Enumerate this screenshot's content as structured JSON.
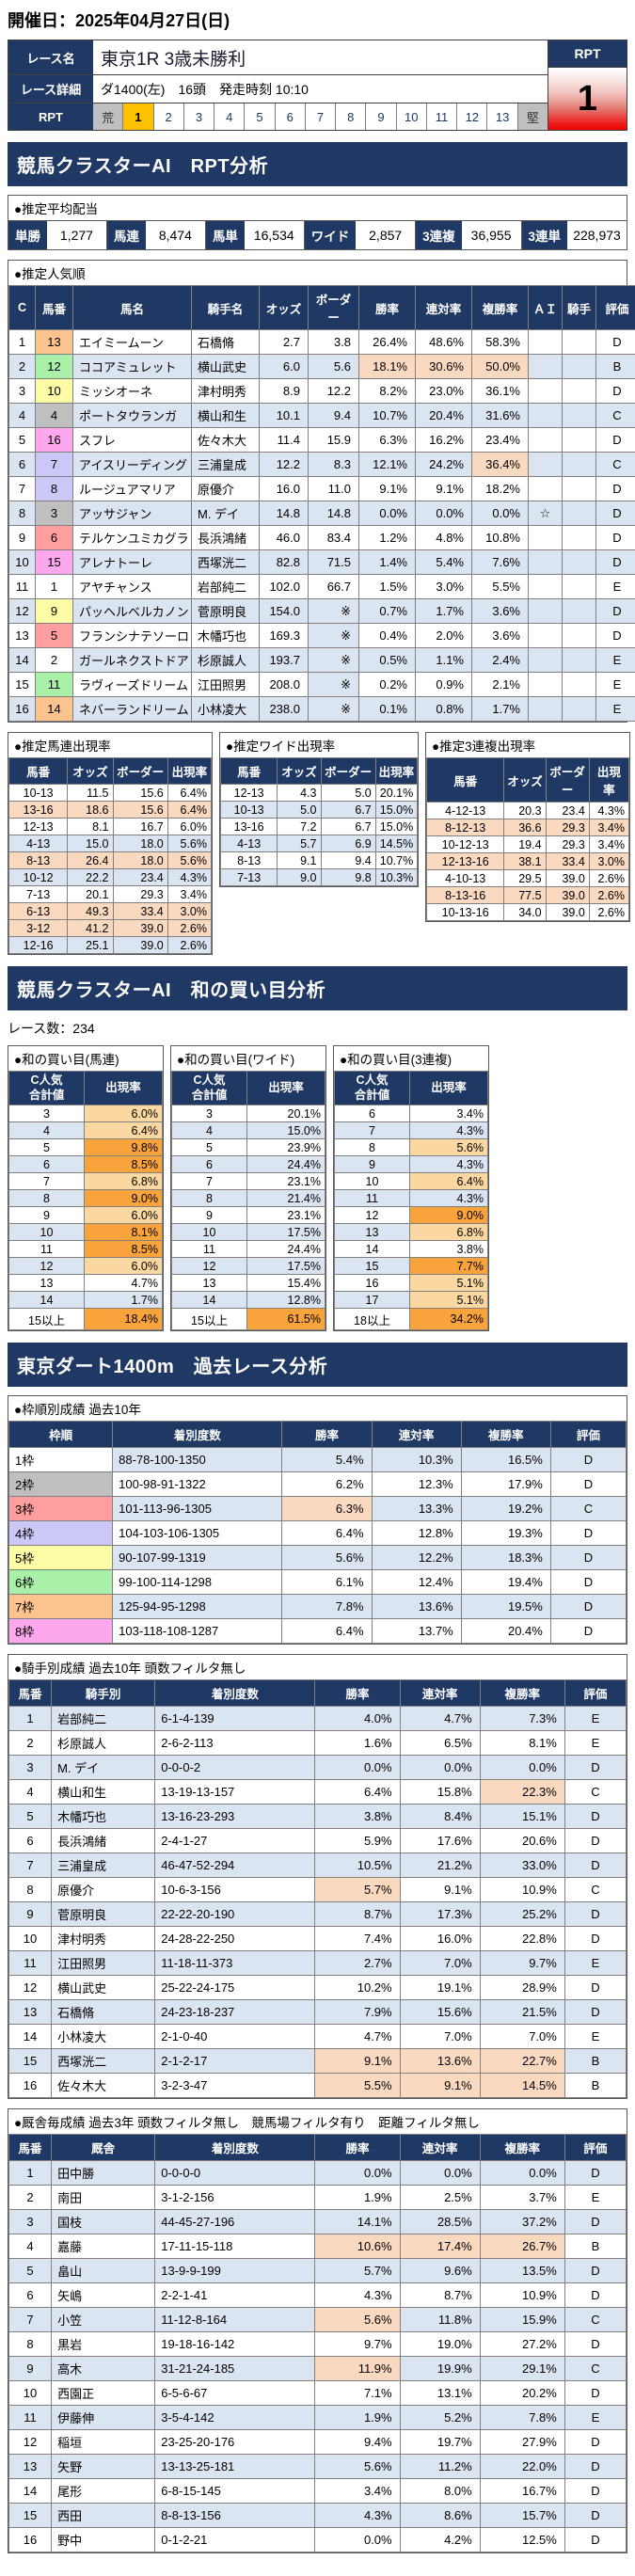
{
  "page": {
    "date": "開催日：2025年04月27日(日)"
  },
  "race": {
    "name_label": "レース名",
    "name": "東京1R 3歳未勝利",
    "detail_label": "レース詳細",
    "detail": "ダ1400(左)　16頭　発走時刻 10:10",
    "rpt_label": "RPT",
    "rpt_scale": [
      "荒",
      "1",
      "2",
      "3",
      "4",
      "5",
      "6",
      "7",
      "8",
      "9",
      "10",
      "11",
      "12",
      "13",
      "堅"
    ],
    "rpt_selected": "1",
    "badge_label": "RPT",
    "badge_value": "1"
  },
  "section_titles": {
    "rpt": "競馬クラスターAI　RPT分析",
    "wa": "競馬クラスターAI　和の買い目分析",
    "past": "東京ダート1400m　過去レース分析"
  },
  "payout": {
    "title": "●推定平均配当",
    "items": [
      [
        "単勝",
        "1,277"
      ],
      [
        "馬連",
        "8,474"
      ],
      [
        "馬単",
        "16,534"
      ],
      [
        "ワイド",
        "2,857"
      ],
      [
        "3連複",
        "36,955"
      ],
      [
        "3連単",
        "228,973"
      ]
    ]
  },
  "popularity": {
    "title": "●推定人気順",
    "headers": [
      "C",
      "馬番",
      "馬名",
      "騎手名",
      "オッズ",
      "ボーダー",
      "勝率",
      "連対率",
      "複勝率",
      "ＡＩ",
      "騎手",
      "評価"
    ],
    "rows": [
      {
        "c": 1,
        "num": 13,
        "name": "エイミームーン",
        "jockey": "石橋脩",
        "odds": "2.7",
        "border": "3.8",
        "win": "26.4%",
        "ren": "48.6%",
        "fuku": "58.3%",
        "ai": "",
        "rider": "",
        "eval": "D",
        "hl": []
      },
      {
        "c": 2,
        "num": 12,
        "name": "ココアミュレット",
        "jockey": "横山武史",
        "odds": "6.0",
        "border": "5.6",
        "win": "18.1%",
        "ren": "30.6%",
        "fuku": "50.0%",
        "ai": "",
        "rider": "",
        "eval": "B",
        "hl": [
          "win",
          "ren",
          "fuku"
        ]
      },
      {
        "c": 3,
        "num": 10,
        "name": "ミッシオーネ",
        "jockey": "津村明秀",
        "odds": "8.9",
        "border": "12.2",
        "win": "8.2%",
        "ren": "23.0%",
        "fuku": "36.1%",
        "ai": "",
        "rider": "",
        "eval": "D",
        "hl": []
      },
      {
        "c": 4,
        "num": 4,
        "name": "ポートタウランガ",
        "jockey": "横山和生",
        "odds": "10.1",
        "border": "9.4",
        "win": "10.7%",
        "ren": "20.4%",
        "fuku": "31.6%",
        "ai": "",
        "rider": "",
        "eval": "C",
        "hl": []
      },
      {
        "c": 5,
        "num": 16,
        "name": "スフレ",
        "jockey": "佐々木大",
        "odds": "11.4",
        "border": "15.9",
        "win": "6.3%",
        "ren": "16.2%",
        "fuku": "23.4%",
        "ai": "",
        "rider": "",
        "eval": "D",
        "hl": []
      },
      {
        "c": 6,
        "num": 7,
        "name": "アイスリーディング",
        "jockey": "三浦皇成",
        "odds": "12.2",
        "border": "8.3",
        "win": "12.1%",
        "ren": "24.2%",
        "fuku": "36.4%",
        "ai": "",
        "rider": "",
        "eval": "C",
        "hl": [
          "fuku"
        ]
      },
      {
        "c": 7,
        "num": 8,
        "name": "ルージュアマリア",
        "jockey": "原優介",
        "odds": "16.0",
        "border": "11.0",
        "win": "9.1%",
        "ren": "9.1%",
        "fuku": "18.2%",
        "ai": "",
        "rider": "",
        "eval": "D",
        "hl": []
      },
      {
        "c": 8,
        "num": 3,
        "name": "アッサジャン",
        "jockey": "M. デイ",
        "odds": "14.8",
        "border": "14.8",
        "win": "0.0%",
        "ren": "0.0%",
        "fuku": "0.0%",
        "ai": "☆",
        "rider": "",
        "eval": "D",
        "hl": []
      },
      {
        "c": 9,
        "num": 6,
        "name": "テルケンユミカグラ",
        "jockey": "長浜鴻緒",
        "odds": "46.0",
        "border": "83.4",
        "win": "1.2%",
        "ren": "4.8%",
        "fuku": "10.8%",
        "ai": "",
        "rider": "",
        "eval": "D",
        "hl": []
      },
      {
        "c": 10,
        "num": 15,
        "name": "アレナトーレ",
        "jockey": "西塚洸二",
        "odds": "82.8",
        "border": "71.5",
        "win": "1.4%",
        "ren": "5.4%",
        "fuku": "7.6%",
        "ai": "",
        "rider": "",
        "eval": "D",
        "hl": []
      },
      {
        "c": 11,
        "num": 1,
        "name": "アヤチャンス",
        "jockey": "岩部純二",
        "odds": "102.0",
        "border": "66.7",
        "win": "1.5%",
        "ren": "3.0%",
        "fuku": "5.5%",
        "ai": "",
        "rider": "",
        "eval": "E",
        "hl": []
      },
      {
        "c": 12,
        "num": 9,
        "name": "パッヘルベルカノン",
        "jockey": "菅原明良",
        "odds": "154.0",
        "border": "※",
        "win": "0.7%",
        "ren": "1.7%",
        "fuku": "3.6%",
        "ai": "",
        "rider": "",
        "eval": "D",
        "hl": []
      },
      {
        "c": 13,
        "num": 5,
        "name": "フランシナテソーロ",
        "jockey": "木幡巧也",
        "odds": "169.3",
        "border": "※",
        "win": "0.4%",
        "ren": "2.0%",
        "fuku": "3.6%",
        "ai": "",
        "rider": "",
        "eval": "D",
        "hl": []
      },
      {
        "c": 14,
        "num": 2,
        "name": "ガールネクストドア",
        "jockey": "杉原誠人",
        "odds": "193.7",
        "border": "※",
        "win": "0.5%",
        "ren": "1.1%",
        "fuku": "2.4%",
        "ai": "",
        "rider": "",
        "eval": "E",
        "hl": []
      },
      {
        "c": 15,
        "num": 11,
        "name": "ラヴィーズドリーム",
        "jockey": "江田照男",
        "odds": "208.0",
        "border": "※",
        "win": "0.2%",
        "ren": "0.9%",
        "fuku": "2.1%",
        "ai": "",
        "rider": "",
        "eval": "E",
        "hl": []
      },
      {
        "c": 16,
        "num": 14,
        "name": "ネバーランドリーム",
        "jockey": "小林凌大",
        "odds": "238.0",
        "border": "※",
        "win": "0.1%",
        "ren": "0.8%",
        "fuku": "1.7%",
        "ai": "",
        "rider": "",
        "eval": "E",
        "hl": []
      }
    ]
  },
  "occurrence": {
    "headers": [
      "馬番",
      "オッズ",
      "ボーダー",
      "出現率"
    ],
    "umaren": {
      "title": "●推定馬連出現率",
      "rows": [
        [
          "10-13",
          "11.5",
          "15.6",
          "6.4%",
          "w"
        ],
        [
          "13-16",
          "18.6",
          "15.6",
          "6.4%",
          "s"
        ],
        [
          "12-13",
          "8.1",
          "16.7",
          "6.0%",
          "w"
        ],
        [
          "4-13",
          "15.0",
          "18.0",
          "5.6%",
          "b"
        ],
        [
          "8-13",
          "26.4",
          "18.0",
          "5.6%",
          "s"
        ],
        [
          "10-12",
          "22.2",
          "23.4",
          "4.3%",
          "b"
        ],
        [
          "7-13",
          "20.1",
          "29.3",
          "3.4%",
          "w"
        ],
        [
          "6-13",
          "49.3",
          "33.4",
          "3.0%",
          "s"
        ],
        [
          "3-12",
          "41.2",
          "39.0",
          "2.6%",
          "s"
        ],
        [
          "12-16",
          "25.1",
          "39.0",
          "2.6%",
          "b"
        ]
      ]
    },
    "wide": {
      "title": "●推定ワイド出現率",
      "rows": [
        [
          "12-13",
          "4.3",
          "5.0",
          "20.1%",
          "w"
        ],
        [
          "10-13",
          "5.0",
          "6.7",
          "15.0%",
          "b"
        ],
        [
          "13-16",
          "7.2",
          "6.7",
          "15.0%",
          "w"
        ],
        [
          "4-13",
          "5.7",
          "6.9",
          "14.5%",
          "b"
        ],
        [
          "8-13",
          "9.1",
          "9.4",
          "10.7%",
          "w"
        ],
        [
          "7-13",
          "9.0",
          "9.8",
          "10.3%",
          "b"
        ]
      ]
    },
    "sanrenpuku": {
      "title": "●推定3連複出現率",
      "rows": [
        [
          "4-12-13",
          "20.3",
          "23.4",
          "4.3%",
          "w"
        ],
        [
          "8-12-13",
          "36.6",
          "29.3",
          "3.4%",
          "s"
        ],
        [
          "10-12-13",
          "19.4",
          "29.3",
          "3.4%",
          "w"
        ],
        [
          "12-13-16",
          "38.1",
          "33.4",
          "3.0%",
          "s"
        ],
        [
          "4-10-13",
          "29.5",
          "39.0",
          "2.6%",
          "w"
        ],
        [
          "8-13-16",
          "77.5",
          "39.0",
          "2.6%",
          "s"
        ],
        [
          "10-13-16",
          "34.0",
          "39.0",
          "2.6%",
          "w"
        ]
      ]
    }
  },
  "wa": {
    "race_count": "レース数：234",
    "header_line1": "C人気",
    "header_line2": "合計値",
    "rate_header": "出現率",
    "umaren": {
      "title": "●和の買い目(馬連)",
      "rows": [
        [
          "3",
          "6.0%",
          "l"
        ],
        [
          "4",
          "6.4%",
          "l"
        ],
        [
          "5",
          "9.8%",
          "o"
        ],
        [
          "6",
          "8.5%",
          "o"
        ],
        [
          "7",
          "6.8%",
          "l"
        ],
        [
          "8",
          "9.0%",
          "o"
        ],
        [
          "9",
          "6.0%",
          "l"
        ],
        [
          "10",
          "8.1%",
          "o"
        ],
        [
          "11",
          "8.5%",
          "o"
        ],
        [
          "12",
          "6.0%",
          "l"
        ],
        [
          "13",
          "4.7%",
          ""
        ],
        [
          "14",
          "1.7%",
          ""
        ],
        [
          "15以上",
          "18.4%",
          "o"
        ]
      ]
    },
    "wide": {
      "title": "●和の買い目(ワイド)",
      "rows": [
        [
          "3",
          "20.1%",
          ""
        ],
        [
          "4",
          "15.0%",
          ""
        ],
        [
          "5",
          "23.9%",
          ""
        ],
        [
          "6",
          "24.4%",
          ""
        ],
        [
          "7",
          "23.1%",
          ""
        ],
        [
          "8",
          "21.4%",
          ""
        ],
        [
          "9",
          "23.1%",
          ""
        ],
        [
          "10",
          "17.5%",
          ""
        ],
        [
          "11",
          "24.4%",
          ""
        ],
        [
          "12",
          "17.5%",
          ""
        ],
        [
          "13",
          "15.4%",
          ""
        ],
        [
          "14",
          "12.8%",
          ""
        ],
        [
          "15以上",
          "61.5%",
          "o"
        ]
      ]
    },
    "sanrenpuku": {
      "title": "●和の買い目(3連複)",
      "rows": [
        [
          "6",
          "3.4%",
          ""
        ],
        [
          "7",
          "4.3%",
          ""
        ],
        [
          "8",
          "5.6%",
          "l"
        ],
        [
          "9",
          "4.3%",
          ""
        ],
        [
          "10",
          "6.4%",
          "l"
        ],
        [
          "11",
          "4.3%",
          ""
        ],
        [
          "12",
          "9.0%",
          "o"
        ],
        [
          "13",
          "6.8%",
          "l"
        ],
        [
          "14",
          "3.8%",
          ""
        ],
        [
          "15",
          "7.7%",
          "o"
        ],
        [
          "16",
          "5.1%",
          "l"
        ],
        [
          "17",
          "5.1%",
          "l"
        ],
        [
          "18以上",
          "34.2%",
          "o"
        ]
      ]
    }
  },
  "waku_stats": {
    "title": "●枠順別成績 過去10年",
    "headers": [
      "枠順",
      "着別度数",
      "勝率",
      "連対率",
      "複勝率",
      "評価"
    ],
    "rows": [
      [
        "1枠",
        "88-78-100-1350",
        "5.4%",
        "10.3%",
        "16.5%",
        "D",
        []
      ],
      [
        "2枠",
        "100-98-91-1322",
        "6.2%",
        "12.3%",
        "17.9%",
        "D",
        []
      ],
      [
        "3枠",
        "101-113-96-1305",
        "6.3%",
        "13.3%",
        "19.2%",
        "C",
        [
          "win"
        ]
      ],
      [
        "4枠",
        "104-103-106-1305",
        "6.4%",
        "12.8%",
        "19.3%",
        "D",
        []
      ],
      [
        "5枠",
        "90-107-99-1319",
        "5.6%",
        "12.2%",
        "18.3%",
        "D",
        []
      ],
      [
        "6枠",
        "99-100-114-1298",
        "6.1%",
        "12.4%",
        "19.4%",
        "D",
        []
      ],
      [
        "7枠",
        "125-94-95-1298",
        "7.8%",
        "13.6%",
        "19.5%",
        "D",
        []
      ],
      [
        "8枠",
        "103-118-108-1287",
        "6.4%",
        "13.7%",
        "20.4%",
        "D",
        []
      ]
    ]
  },
  "jockey_stats": {
    "title": "●騎手別成績 過去10年 頭数フィルタ無し",
    "headers": [
      "馬番",
      "騎手別",
      "着別度数",
      "勝率",
      "連対率",
      "複勝率",
      "評価"
    ],
    "rows": [
      [
        1,
        "岩部純二",
        "6-1-4-139",
        "4.0%",
        "4.7%",
        "7.3%",
        "E",
        []
      ],
      [
        2,
        "杉原誠人",
        "2-6-2-113",
        "1.6%",
        "6.5%",
        "8.1%",
        "E",
        []
      ],
      [
        3,
        "M. デイ",
        "0-0-0-2",
        "0.0%",
        "0.0%",
        "0.0%",
        "D",
        []
      ],
      [
        4,
        "横山和生",
        "13-19-13-157",
        "6.4%",
        "15.8%",
        "22.3%",
        "C",
        [
          "fuku"
        ]
      ],
      [
        5,
        "木幡巧也",
        "13-16-23-293",
        "3.8%",
        "8.4%",
        "15.1%",
        "D",
        []
      ],
      [
        6,
        "長浜鴻緒",
        "2-4-1-27",
        "5.9%",
        "17.6%",
        "20.6%",
        "D",
        []
      ],
      [
        7,
        "三浦皇成",
        "46-47-52-294",
        "10.5%",
        "21.2%",
        "33.0%",
        "D",
        []
      ],
      [
        8,
        "原優介",
        "10-6-3-156",
        "5.7%",
        "9.1%",
        "10.9%",
        "C",
        [
          "win"
        ]
      ],
      [
        9,
        "菅原明良",
        "22-22-20-190",
        "8.7%",
        "17.3%",
        "25.2%",
        "D",
        []
      ],
      [
        10,
        "津村明秀",
        "24-28-22-250",
        "7.4%",
        "16.0%",
        "22.8%",
        "D",
        []
      ],
      [
        11,
        "江田照男",
        "11-18-11-373",
        "2.7%",
        "7.0%",
        "9.7%",
        "E",
        []
      ],
      [
        12,
        "横山武史",
        "25-22-24-175",
        "10.2%",
        "19.1%",
        "28.9%",
        "D",
        []
      ],
      [
        13,
        "石橋脩",
        "24-23-18-237",
        "7.9%",
        "15.6%",
        "21.5%",
        "D",
        []
      ],
      [
        14,
        "小林凌大",
        "2-1-0-40",
        "4.7%",
        "7.0%",
        "7.0%",
        "E",
        []
      ],
      [
        15,
        "西塚洸二",
        "2-1-2-17",
        "9.1%",
        "13.6%",
        "22.7%",
        "B",
        [
          "win",
          "ren",
          "fuku"
        ]
      ],
      [
        16,
        "佐々木大",
        "3-2-3-47",
        "5.5%",
        "9.1%",
        "14.5%",
        "B",
        [
          "win",
          "ren",
          "fuku"
        ]
      ]
    ]
  },
  "trainer_stats": {
    "title": "●厩舎毎成績 過去3年 頭数フィルタ無し　競馬場フィルタ有り　距離フィルタ無し",
    "headers": [
      "馬番",
      "厩舎",
      "着別度数",
      "勝率",
      "連対率",
      "複勝率",
      "評価"
    ],
    "rows": [
      [
        1,
        "田中勝",
        "0-0-0-0",
        "0.0%",
        "0.0%",
        "0.0%",
        "D",
        []
      ],
      [
        2,
        "南田",
        "3-1-2-156",
        "1.9%",
        "2.5%",
        "3.7%",
        "E",
        []
      ],
      [
        3,
        "国枝",
        "44-45-27-196",
        "14.1%",
        "28.5%",
        "37.2%",
        "D",
        []
      ],
      [
        4,
        "嘉藤",
        "17-11-15-118",
        "10.6%",
        "17.4%",
        "26.7%",
        "B",
        [
          "win",
          "ren",
          "fuku"
        ]
      ],
      [
        5,
        "畠山",
        "13-9-9-199",
        "5.7%",
        "9.6%",
        "13.5%",
        "D",
        []
      ],
      [
        6,
        "矢嶋",
        "2-2-1-41",
        "4.3%",
        "8.7%",
        "10.9%",
        "D",
        []
      ],
      [
        7,
        "小笠",
        "11-12-8-164",
        "5.6%",
        "11.8%",
        "15.9%",
        "C",
        [
          "win"
        ]
      ],
      [
        8,
        "黒岩",
        "19-18-16-142",
        "9.7%",
        "19.0%",
        "27.2%",
        "D",
        []
      ],
      [
        9,
        "高木",
        "31-21-24-185",
        "11.9%",
        "19.9%",
        "29.1%",
        "C",
        [
          "win"
        ]
      ],
      [
        10,
        "西園正",
        "6-5-6-67",
        "7.1%",
        "13.1%",
        "20.2%",
        "D",
        []
      ],
      [
        11,
        "伊藤伸",
        "3-5-4-142",
        "1.9%",
        "5.2%",
        "7.8%",
        "E",
        []
      ],
      [
        12,
        "稲垣",
        "23-25-20-176",
        "9.4%",
        "19.7%",
        "27.9%",
        "D",
        []
      ],
      [
        13,
        "矢野",
        "13-13-25-181",
        "5.6%",
        "11.2%",
        "22.0%",
        "D",
        []
      ],
      [
        14,
        "尾形",
        "6-8-15-145",
        "3.4%",
        "8.0%",
        "16.7%",
        "D",
        []
      ],
      [
        15,
        "西田",
        "8-8-13-156",
        "4.3%",
        "8.6%",
        "15.7%",
        "D",
        []
      ],
      [
        16,
        "野中",
        "0-1-2-21",
        "0.0%",
        "4.2%",
        "12.5%",
        "D",
        []
      ]
    ]
  },
  "colors": {
    "navy": "#1f3864",
    "row_alt": "#dbe5f1",
    "highlight": "#fad9c1",
    "orange_strong": "#f8a33c",
    "orange_light": "#fbd8a2",
    "rpt_selected": "#ffc000",
    "waku": [
      "#ffffff",
      "#bfbfbf",
      "#ff9e9e",
      "#cbc7f7",
      "#fdfca6",
      "#a9f1a9",
      "#fbc38d",
      "#fda7ef"
    ]
  }
}
